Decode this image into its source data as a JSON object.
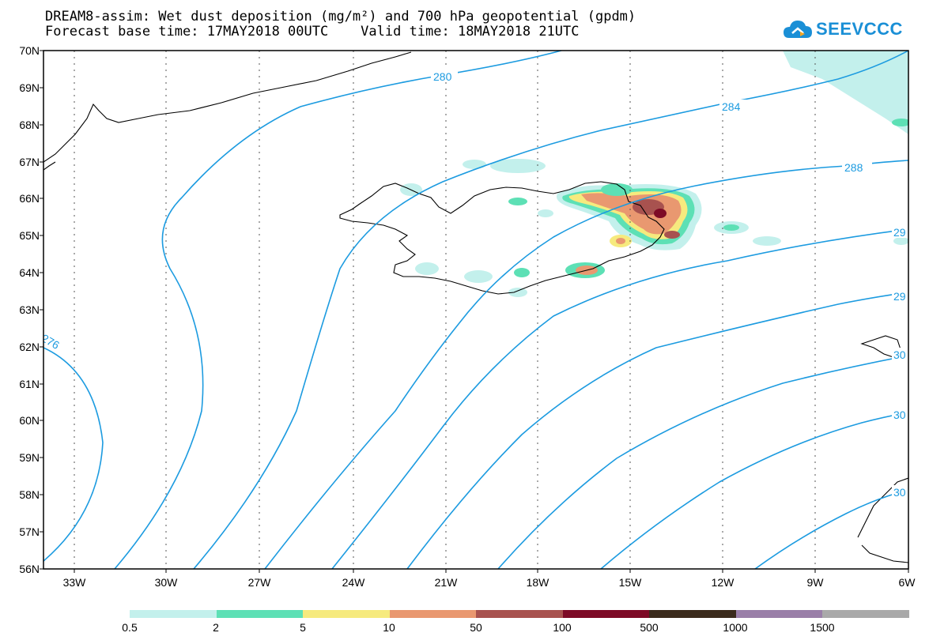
{
  "title": {
    "line1": "DREAM8-assim: Wet dust deposition (mg/m²) and 700 hPa geopotential (gpdm)",
    "line2": "Forecast base time: 17MAY2018 00UTC    Valid time: 18MAY2018 21UTC"
  },
  "logo": {
    "text": "SEEVCCC",
    "icon": "cloud-icon",
    "color": "#1a8fd6"
  },
  "axes": {
    "lat_labels": [
      "70N",
      "69N",
      "68N",
      "67N",
      "66N",
      "65N",
      "64N",
      "63N",
      "62N",
      "61N",
      "60N",
      "59N",
      "58N",
      "57N",
      "56N"
    ],
    "lon_labels": [
      "33W",
      "30W",
      "27W",
      "24W",
      "21W",
      "18W",
      "15W",
      "12W",
      "9W",
      "6W"
    ]
  },
  "contours": {
    "color": "#1c9be0",
    "labels": [
      "276",
      "280",
      "284",
      "288",
      "29",
      "29",
      "30",
      "30",
      "30"
    ]
  },
  "legend": {
    "colors": [
      "#c3f0ec",
      "#5de0b5",
      "#f6ea7e",
      "#e99870",
      "#a8524f",
      "#7d0a26",
      "#3b2b1c",
      "#9a7fa8",
      "#a9a9a9"
    ],
    "labels": [
      "0.5",
      "2",
      "5",
      "10",
      "50",
      "100",
      "500",
      "1000",
      "1500"
    ]
  }
}
